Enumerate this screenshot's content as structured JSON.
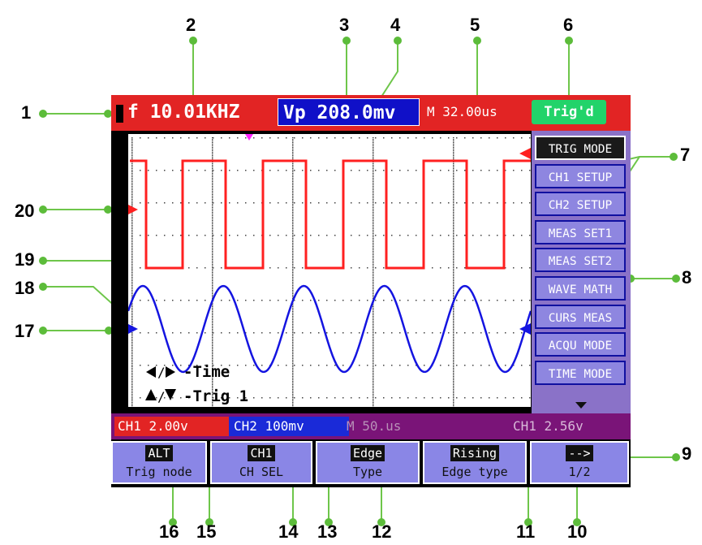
{
  "callouts": [
    "1",
    "2",
    "3",
    "4",
    "5",
    "6",
    "7",
    "8",
    "9",
    "10",
    "11",
    "12",
    "13",
    "14",
    "15",
    "16",
    "17",
    "18",
    "19",
    "20"
  ],
  "topbar": {
    "frequency": "f 10.01KHZ",
    "vp": "Vp 208.0mv",
    "timebase": "M 32.00us",
    "trigger_status": "Trig'd"
  },
  "menu": {
    "items": [
      "TRIG MODE",
      "CH1 SETUP",
      "CH2 SETUP",
      "MEAS SET1",
      "MEAS SET2",
      "WAVE MATH",
      "CURS MEAS",
      "ACQU MODE",
      "TIME MODE"
    ],
    "selected": "TRIG MODE"
  },
  "waveform": {
    "hint_time": "-Time",
    "hint_trig": "-Trig 1",
    "ch1": {
      "type": "square",
      "cycles_visible": 5.2
    },
    "ch2": {
      "type": "sine",
      "cycles_visible": 5.0
    }
  },
  "statusbar": {
    "ch1": "CH1 2.00v",
    "ch2": "CH2 100mv",
    "timebase": "M 50.us",
    "trigger": "CH1 2.56v"
  },
  "softkeys": [
    {
      "top": "ALT",
      "bottom": "Trig node"
    },
    {
      "top": "CH1",
      "bottom": "CH SEL"
    },
    {
      "top": "Edge",
      "bottom": "Type"
    },
    {
      "top": "Rising",
      "bottom": "Edge type"
    },
    {
      "top": "-->",
      "bottom": "1/2"
    }
  ],
  "colors": {
    "ch1": "#ff2020",
    "ch2": "#1414e0",
    "trig_marker": "#ff22ff",
    "leader": "#6ec64a",
    "leader_dot": "#5cbc3a",
    "topbar_red": "#e22424",
    "vp_blue": "#1010c8",
    "trig_green": "#22d36a",
    "menu_purple": "#8a72c8",
    "status_purple": "#7a1478"
  }
}
